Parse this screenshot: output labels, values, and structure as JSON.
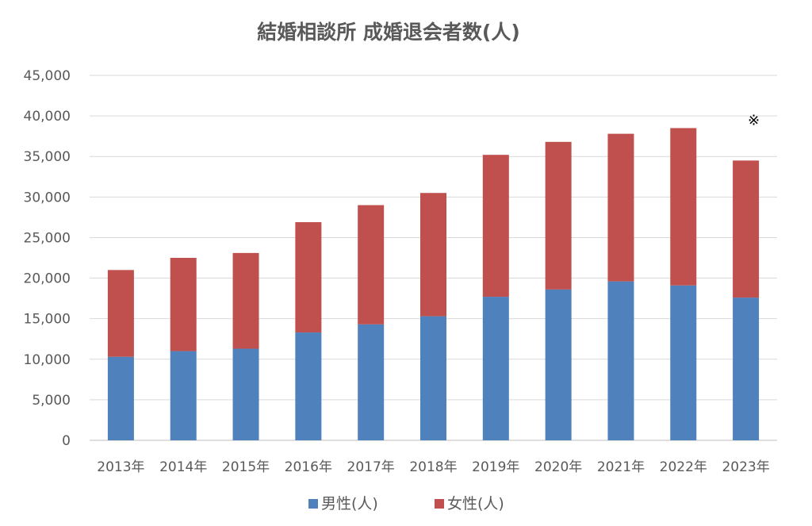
{
  "chart_data": {
    "type": "bar",
    "stacked": true,
    "title": "結婚相談所 成婚退会者数(人)",
    "xlabel": "",
    "ylabel": "",
    "categories": [
      "2013年",
      "2014年",
      "2015年",
      "2016年",
      "2017年",
      "2018年",
      "2019年",
      "2020年",
      "2021年",
      "2022年",
      "2023年"
    ],
    "series": [
      {
        "name": "男性(人)",
        "color": "#4f81bd",
        "values": [
          10300,
          11000,
          11300,
          13300,
          14300,
          15300,
          17700,
          18600,
          19600,
          19100,
          17600
        ]
      },
      {
        "name": "女性(人)",
        "color": "#c0504d",
        "values": [
          10700,
          11500,
          11800,
          13600,
          14700,
          15200,
          17500,
          18200,
          18200,
          19400,
          16900
        ]
      }
    ],
    "ylim": [
      0,
      45000
    ],
    "yticks": [
      0,
      5000,
      10000,
      15000,
      20000,
      25000,
      30000,
      35000,
      40000,
      45000
    ],
    "ytick_labels": [
      "0",
      "5,000",
      "10,000",
      "15,000",
      "20,000",
      "25,000",
      "30,000",
      "35,000",
      "40,000",
      "45,000"
    ],
    "grid": true,
    "legend_position": "bottom",
    "annotations": [
      {
        "category": "2023年",
        "text": "※"
      }
    ]
  }
}
